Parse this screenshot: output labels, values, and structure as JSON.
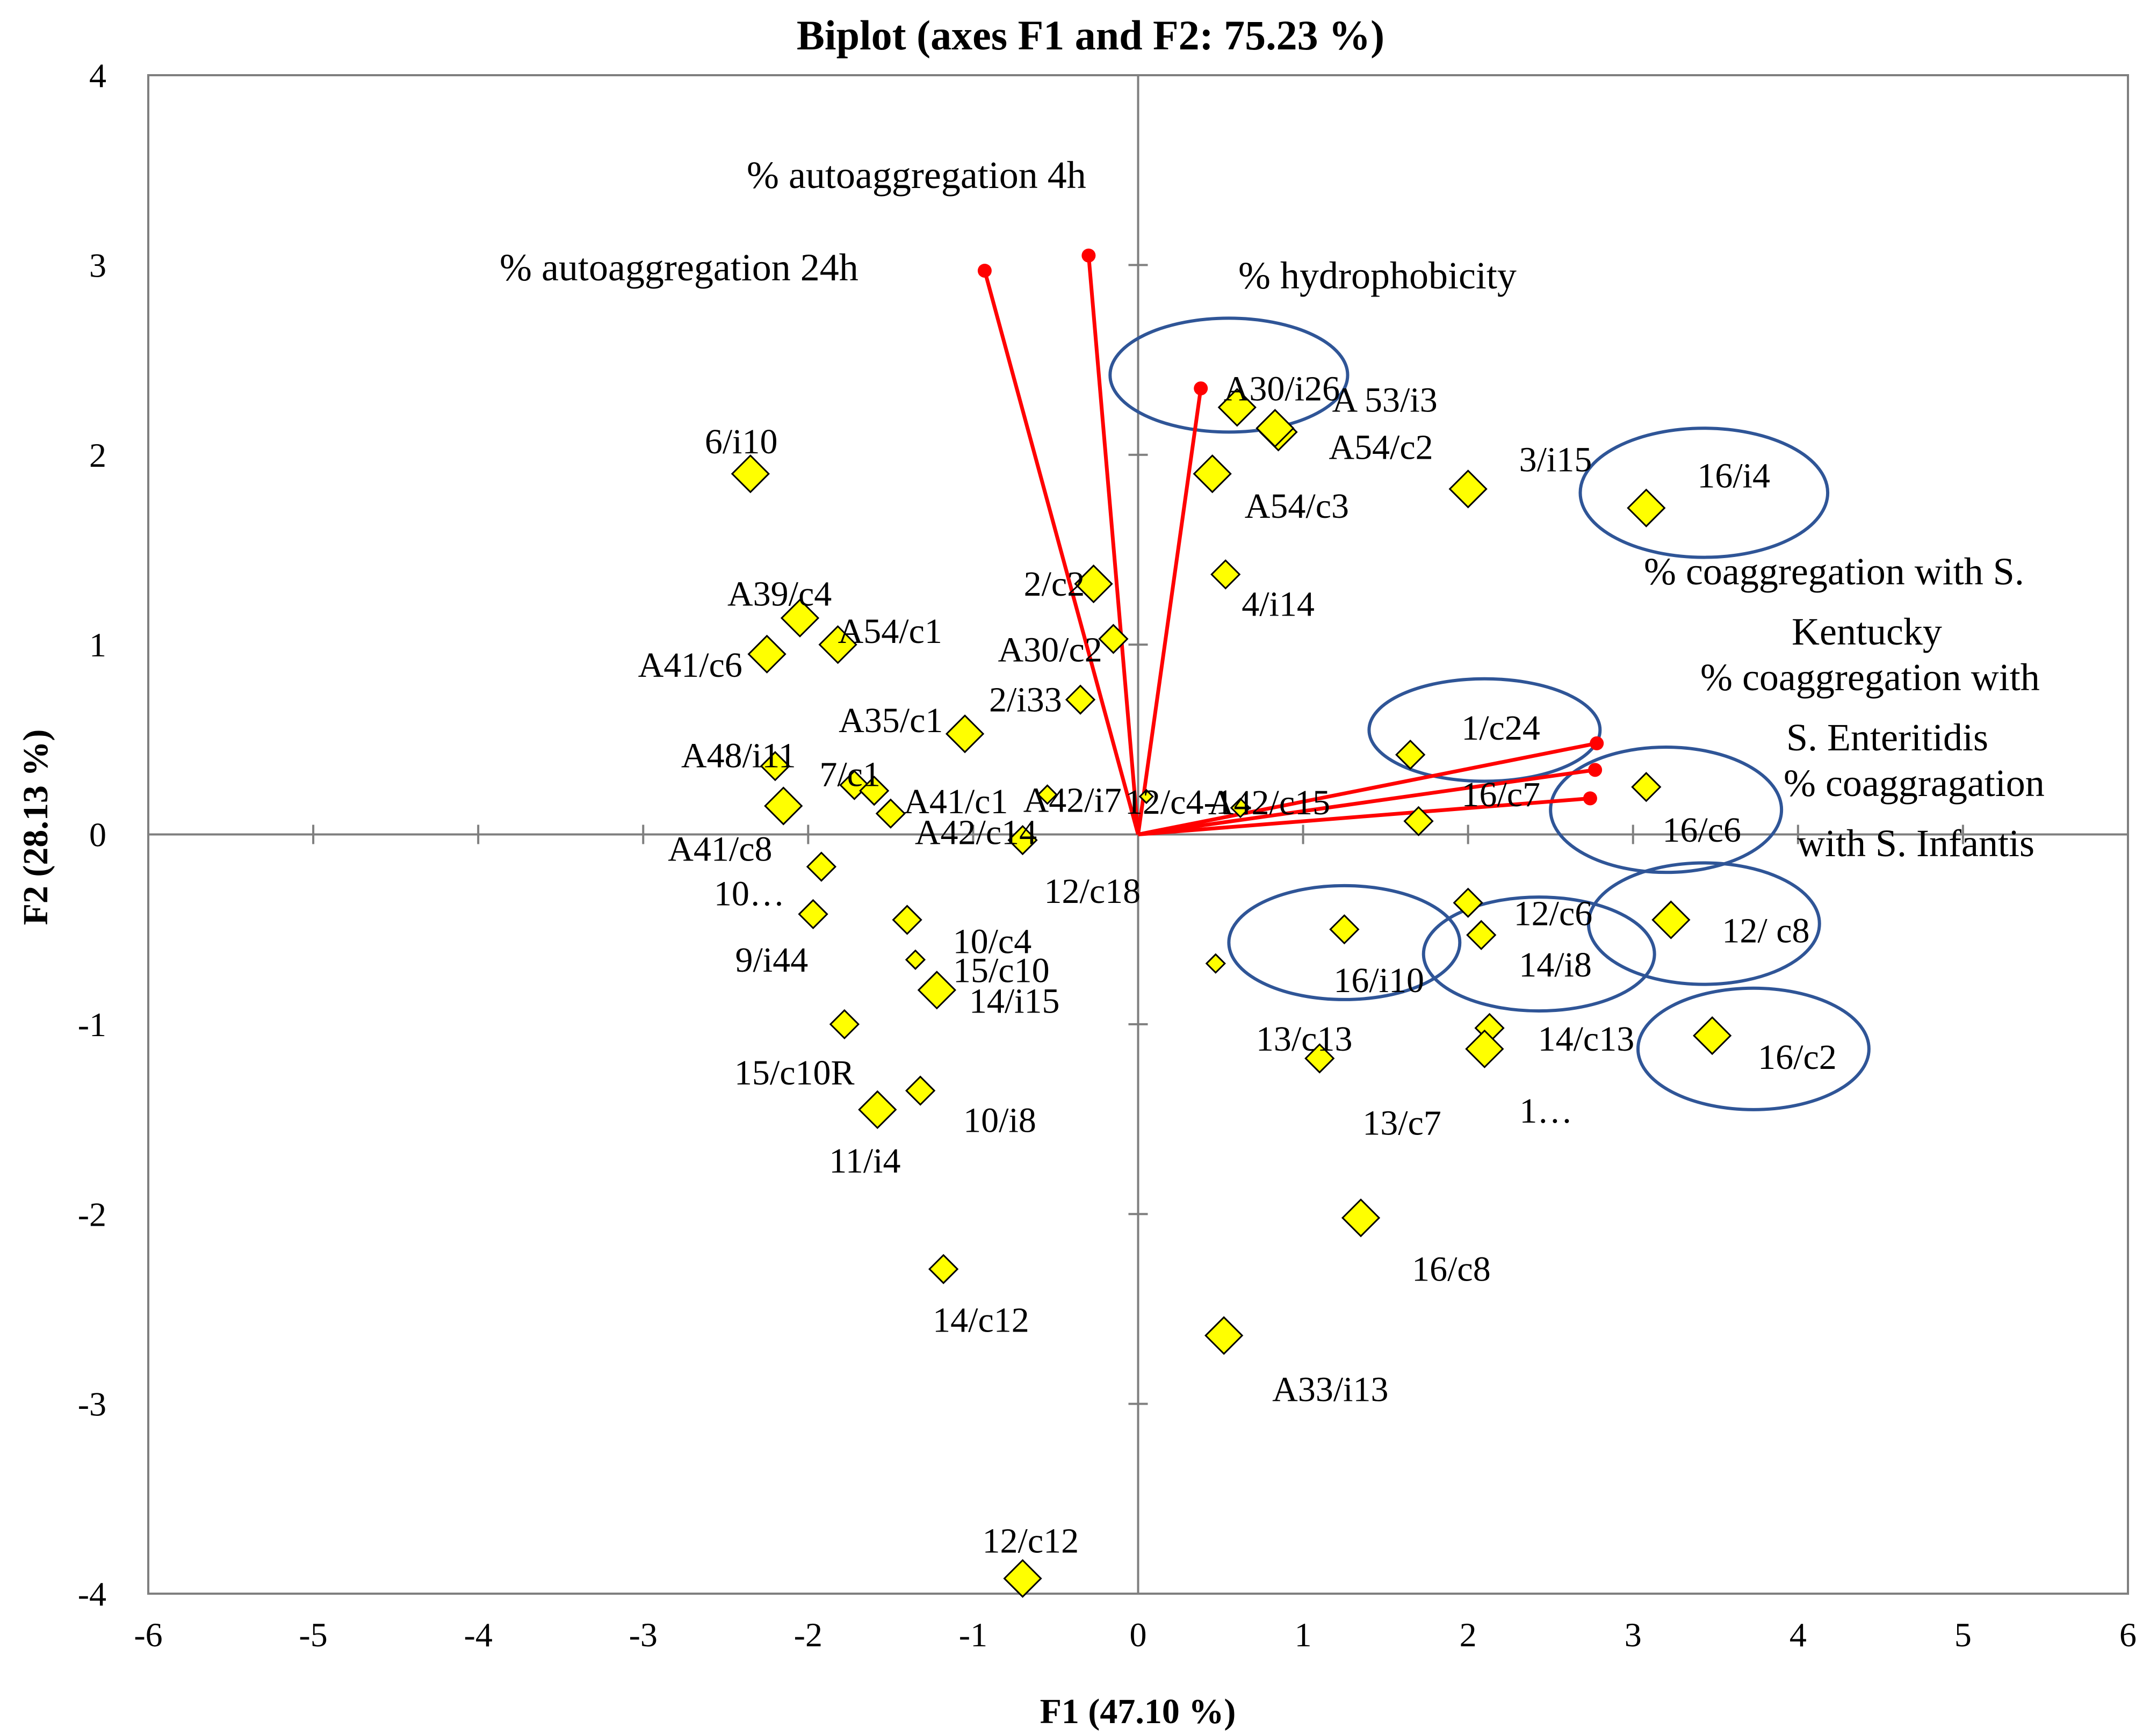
{
  "chart_data": {
    "type": "scatter",
    "title": "Biplot (axes F1 and F2: 75.23 %)",
    "xlabel": "F1 (47.10 %)",
    "ylabel": "F2 (28.13 %)",
    "xlim": [
      -6,
      6
    ],
    "ylim": [
      -4,
      4
    ],
    "xticks": [
      -6,
      -5,
      -4,
      -3,
      -2,
      -1,
      0,
      1,
      2,
      3,
      4,
      5,
      6
    ],
    "yticks": [
      -4,
      -3,
      -2,
      -1,
      0,
      1,
      2,
      3,
      4
    ],
    "observations": [
      {
        "label": "A30/i26",
        "x": 0.6,
        "y": 2.25,
        "size": "large"
      },
      {
        "label": "A 53/i3",
        "x": 0.85,
        "y": 2.12,
        "size": "large"
      },
      {
        "label": "A54/c2",
        "x": 0.83,
        "y": 2.14,
        "size": "large"
      },
      {
        "label": "A54/c3",
        "x": 0.45,
        "y": 1.9,
        "size": "large"
      },
      {
        "label": "3/i15",
        "x": 2.0,
        "y": 1.82,
        "size": "large"
      },
      {
        "label": "16/i4",
        "x": 3.08,
        "y": 1.72,
        "size": "large"
      },
      {
        "label": "4/i14",
        "x": 0.53,
        "y": 1.37,
        "size": "medium"
      },
      {
        "label": "6/i10",
        "x": -2.35,
        "y": 1.9,
        "size": "large"
      },
      {
        "label": "2/c2",
        "x": -0.27,
        "y": 1.32,
        "size": "large"
      },
      {
        "label": "A39/c4",
        "x": -2.05,
        "y": 1.14,
        "size": "large"
      },
      {
        "label": "A54/c1",
        "x": -1.82,
        "y": 1.0,
        "size": "large"
      },
      {
        "label": "A41/c6",
        "x": -2.25,
        "y": 0.95,
        "size": "large"
      },
      {
        "label": "A30/c2",
        "x": -0.15,
        "y": 1.03,
        "size": "medium"
      },
      {
        "label": "2/i33",
        "x": -0.35,
        "y": 0.71,
        "size": "medium"
      },
      {
        "label": "A35/c1",
        "x": -1.05,
        "y": 0.53,
        "size": "large"
      },
      {
        "label": "A48/i11",
        "x": -2.2,
        "y": 0.36,
        "size": "medium"
      },
      {
        "label": "7/c1",
        "x": -1.72,
        "y": 0.26,
        "size": "medium"
      },
      {
        "label": "A41/c1",
        "x": -1.6,
        "y": 0.23,
        "size": "medium"
      },
      {
        "label": "A41/c8",
        "x": -2.15,
        "y": 0.15,
        "size": "large"
      },
      {
        "label": "A42/c14",
        "x": -1.5,
        "y": 0.11,
        "size": "medium"
      },
      {
        "label": "A42/i7",
        "x": -0.55,
        "y": 0.21,
        "size": "small"
      },
      {
        "label": "12/c4-1",
        "x": 0.05,
        "y": 0.2,
        "size": "tiny"
      },
      {
        "label": "A42/c15",
        "x": 0.62,
        "y": 0.14,
        "size": "small"
      },
      {
        "label": "1/c24",
        "x": 1.65,
        "y": 0.42,
        "size": "medium"
      },
      {
        "label": "16/c7",
        "x": 1.7,
        "y": 0.07,
        "size": "medium"
      },
      {
        "label": "16/c6",
        "x": 3.08,
        "y": 0.25,
        "size": "medium"
      },
      {
        "label": "12/c18",
        "x": -0.7,
        "y": -0.03,
        "size": "medium"
      },
      {
        "label": "10…",
        "x": -1.92,
        "y": -0.17,
        "size": "medium"
      },
      {
        "label": "9/i44",
        "x": -1.97,
        "y": -0.42,
        "size": "medium"
      },
      {
        "label": "10/c4",
        "x": -1.4,
        "y": -0.45,
        "size": "medium"
      },
      {
        "label": "15/c10",
        "x": -1.35,
        "y": -0.66,
        "size": "small"
      },
      {
        "label": "14/i15",
        "x": -1.22,
        "y": -0.82,
        "size": "large"
      },
      {
        "label": "15/c10R",
        "x": -1.78,
        "y": -1.0,
        "size": "medium"
      },
      {
        "label": "10/i8",
        "x": -1.32,
        "y": -1.35,
        "size": "medium"
      },
      {
        "label": "11/i4",
        "x": -1.58,
        "y": -1.45,
        "size": "large"
      },
      {
        "label": "14/c12",
        "x": -1.18,
        "y": -2.29,
        "size": "medium"
      },
      {
        "label": "12/c12",
        "x": -0.7,
        "y": -3.92,
        "size": "large"
      },
      {
        "label": "12/c6",
        "x": 2.0,
        "y": -0.36,
        "size": "medium"
      },
      {
        "label": "12/ c8",
        "x": 3.23,
        "y": -0.45,
        "size": "large"
      },
      {
        "label": "16/i10",
        "x": 1.25,
        "y": -0.5,
        "size": "medium"
      },
      {
        "label": "14/i8",
        "x": 2.08,
        "y": -0.53,
        "size": "medium"
      },
      {
        "label": "13/c13",
        "x": 0.47,
        "y": -0.68,
        "size": "small"
      },
      {
        "label": "14/c13",
        "x": 2.13,
        "y": -1.02,
        "size": "medium"
      },
      {
        "label": "16/c2",
        "x": 3.48,
        "y": -1.06,
        "size": "large"
      },
      {
        "label": "1…",
        "x": 2.1,
        "y": -1.13,
        "size": "large"
      },
      {
        "label": "13/c7",
        "x": 1.1,
        "y": -1.18,
        "size": "medium"
      },
      {
        "label": "16/c8",
        "x": 1.35,
        "y": -2.02,
        "size": "large"
      },
      {
        "label": "A33/i13",
        "x": 0.52,
        "y": -2.64,
        "size": "large"
      }
    ],
    "variables": [
      {
        "name": "% autoaggregation 4h",
        "x": -0.3,
        "y": 3.05
      },
      {
        "name": "% autoaggregation 24h",
        "x": -0.93,
        "y": 2.97
      },
      {
        "name": "% hydrophobicity",
        "x": 0.38,
        "y": 2.35
      },
      {
        "name": "% coaggregation with S. Kentucky",
        "x": 2.78,
        "y": 0.48,
        "lines": [
          "% coaggregation with S.",
          "Kentucky"
        ]
      },
      {
        "name": "% coaggregation with S. Enteritidis",
        "x": 2.77,
        "y": 0.34,
        "lines": [
          "% coaggregation with",
          "S. Enteritidis"
        ]
      },
      {
        "name": "% coaggragation with S. Infantis",
        "x": 2.74,
        "y": 0.19,
        "lines": [
          "% coaggragation",
          "with S. Infantis"
        ]
      }
    ],
    "highlight_groups": [
      "A30/i26",
      "16/i4",
      "1/c24",
      "16/c6",
      "12/ c8",
      "16/i10",
      "14/i8",
      "16/c2"
    ]
  }
}
